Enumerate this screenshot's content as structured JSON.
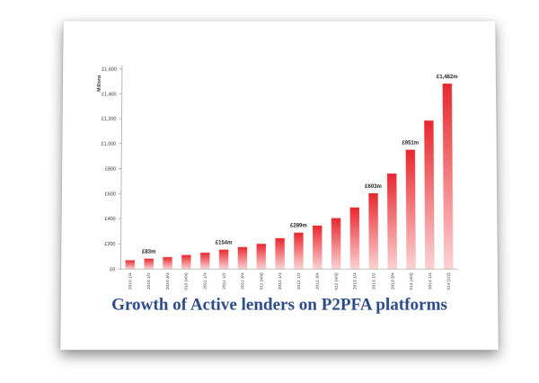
{
  "chart_data": {
    "type": "bar",
    "title": "Growth of Active lenders on P2PFA platforms",
    "ylabel": "Millions",
    "ylim": [
      0,
      1600
    ],
    "yticks": [
      "£0",
      "£200",
      "£400",
      "£600",
      "£800",
      "£1,000",
      "£1,200",
      "£1,400",
      "£1,600"
    ],
    "grid": false,
    "bar_color": "#e8282e",
    "bar_color_light": "#fbd3d3",
    "categories": [
      "2010 1/4",
      "2010 1/2",
      "2010 3/4",
      "2010 (4/4)",
      "2011 1/4",
      "2011 1/2",
      "2011 3/4",
      "2011 (4/4)",
      "2012 1/4",
      "2012 1/2",
      "2012 3/4",
      "2012 (4/4)",
      "2013 1/4",
      "2013 1/2",
      "2013 3/4",
      "2013 (4/4)",
      "2014 1/4",
      "2014 (1/2)"
    ],
    "values": [
      70,
      83,
      95,
      112,
      130,
      154,
      175,
      200,
      245,
      289,
      345,
      405,
      490,
      603,
      760,
      951,
      1185,
      1482
    ],
    "data_labels": [
      {
        "index": 1,
        "text": "£83m"
      },
      {
        "index": 5,
        "text": "£154m"
      },
      {
        "index": 9,
        "text": "£289m"
      },
      {
        "index": 13,
        "text": "£603m"
      },
      {
        "index": 15,
        "text": "£951m"
      },
      {
        "index": 17,
        "text": "£1,482m"
      }
    ]
  }
}
